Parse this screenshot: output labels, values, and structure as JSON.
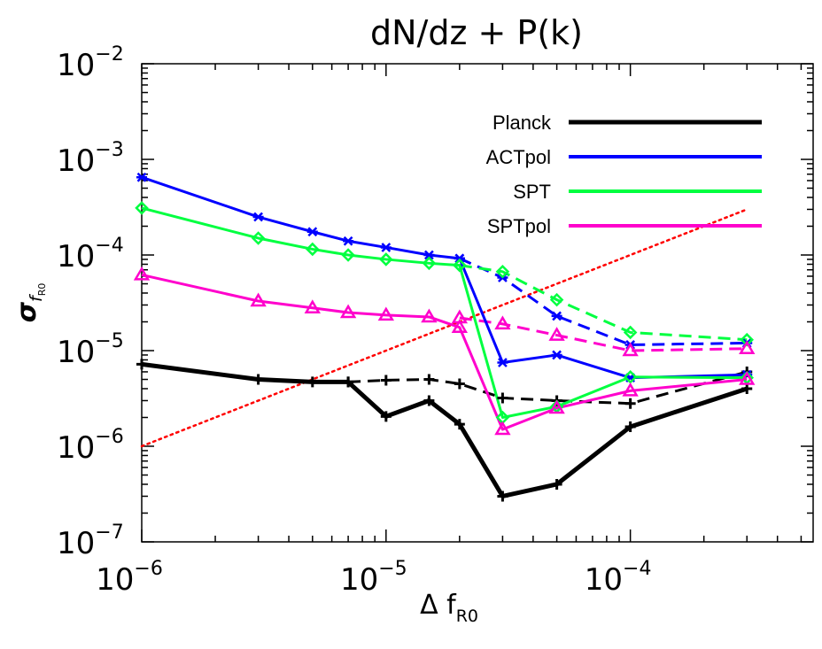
{
  "chart_data": {
    "type": "line",
    "title": "dN/dz + P(k)",
    "xlabel": {
      "main": "Δ  f",
      "sub": "R0"
    },
    "ylabel": {
      "main": "σ",
      "sub": "f",
      "subsub": "R0"
    },
    "xscale": "log",
    "yscale": "log",
    "xlim": [
      1e-06,
      0.00056
    ],
    "ylim": [
      1e-07,
      0.01
    ],
    "x_ticks": [
      {
        "value": 1e-06,
        "base": "10",
        "exp": "−6"
      },
      {
        "value": 1e-05,
        "base": "10",
        "exp": "−5"
      },
      {
        "value": 0.0001,
        "base": "10",
        "exp": "−4"
      }
    ],
    "y_ticks": [
      {
        "value": 1e-07,
        "base": "10",
        "exp": "−7"
      },
      {
        "value": 1e-06,
        "base": "10",
        "exp": "−6"
      },
      {
        "value": 1e-05,
        "base": "10",
        "exp": "−5"
      },
      {
        "value": 0.0001,
        "base": "10",
        "exp": "−4"
      },
      {
        "value": 0.001,
        "base": "10",
        "exp": "−3"
      },
      {
        "value": 0.01,
        "base": "10",
        "exp": "−2"
      }
    ],
    "legend_position": "top-right",
    "grid": false,
    "x": [
      1e-06,
      3e-06,
      5e-06,
      7e-06,
      1e-05,
      1.5e-05,
      2e-05,
      3e-05,
      5e-05,
      0.0001,
      0.0003
    ],
    "series": [
      {
        "name": "Planck",
        "color": "#000000",
        "marker": "plus",
        "solid": [
          7.2e-06,
          5e-06,
          4.7e-06,
          4.7e-06,
          2.05e-06,
          3e-06,
          1.7e-06,
          3e-07,
          4e-07,
          1.6e-06,
          4e-06
        ],
        "dashed_x": [
          7e-06,
          1e-05,
          1.5e-05,
          2e-05,
          3e-05,
          5e-05,
          0.0001,
          0.0003
        ],
        "dashed": [
          4.7e-06,
          4.9e-06,
          5e-06,
          4.5e-06,
          3.2e-06,
          3e-06,
          2.8e-06,
          6e-06
        ]
      },
      {
        "name": "ACTpol",
        "color": "#0000ff",
        "marker": "asterisk",
        "solid": [
          0.00065,
          0.00025,
          0.000175,
          0.00014,
          0.00012,
          0.0001,
          9.2e-05,
          7.5e-06,
          9e-06,
          5.2e-06,
          5.6e-06
        ],
        "dashed_x": [
          2e-05,
          3e-05,
          5e-05,
          0.0001,
          0.0003
        ],
        "dashed": [
          9.2e-05,
          5.8e-05,
          2.3e-05,
          1.15e-05,
          1.2e-05
        ]
      },
      {
        "name": "SPT",
        "color": "#00ff40",
        "marker": "diamond",
        "solid": [
          0.00031,
          0.00015,
          0.000115,
          0.0001,
          9e-05,
          8.2e-05,
          7.8e-05,
          2e-06,
          2.6e-06,
          5.3e-06,
          5.2e-06
        ],
        "dashed_x": [
          2e-05,
          3e-05,
          5e-05,
          0.0001,
          0.0003
        ],
        "dashed": [
          7.8e-05,
          6.7e-05,
          3.4e-05,
          1.55e-05,
          1.3e-05
        ]
      },
      {
        "name": "SPTpol",
        "color": "#ff00cc",
        "marker": "triangle",
        "solid": [
          6.2e-05,
          3.3e-05,
          2.8e-05,
          2.5e-05,
          2.35e-05,
          2.25e-05,
          1.75e-05,
          1.5e-06,
          2.5e-06,
          3.8e-06,
          5e-06
        ],
        "dashed_x": [
          2e-05,
          3e-05,
          5e-05,
          0.0001,
          0.0003
        ],
        "dashed": [
          2.2e-05,
          1.9e-05,
          1.45e-05,
          1e-05,
          1.05e-05
        ]
      }
    ],
    "reference_line": {
      "color": "#ff0000",
      "style": "dotted",
      "x": [
        1e-06,
        0.0003
      ],
      "y": [
        1e-06,
        0.0003
      ]
    }
  }
}
